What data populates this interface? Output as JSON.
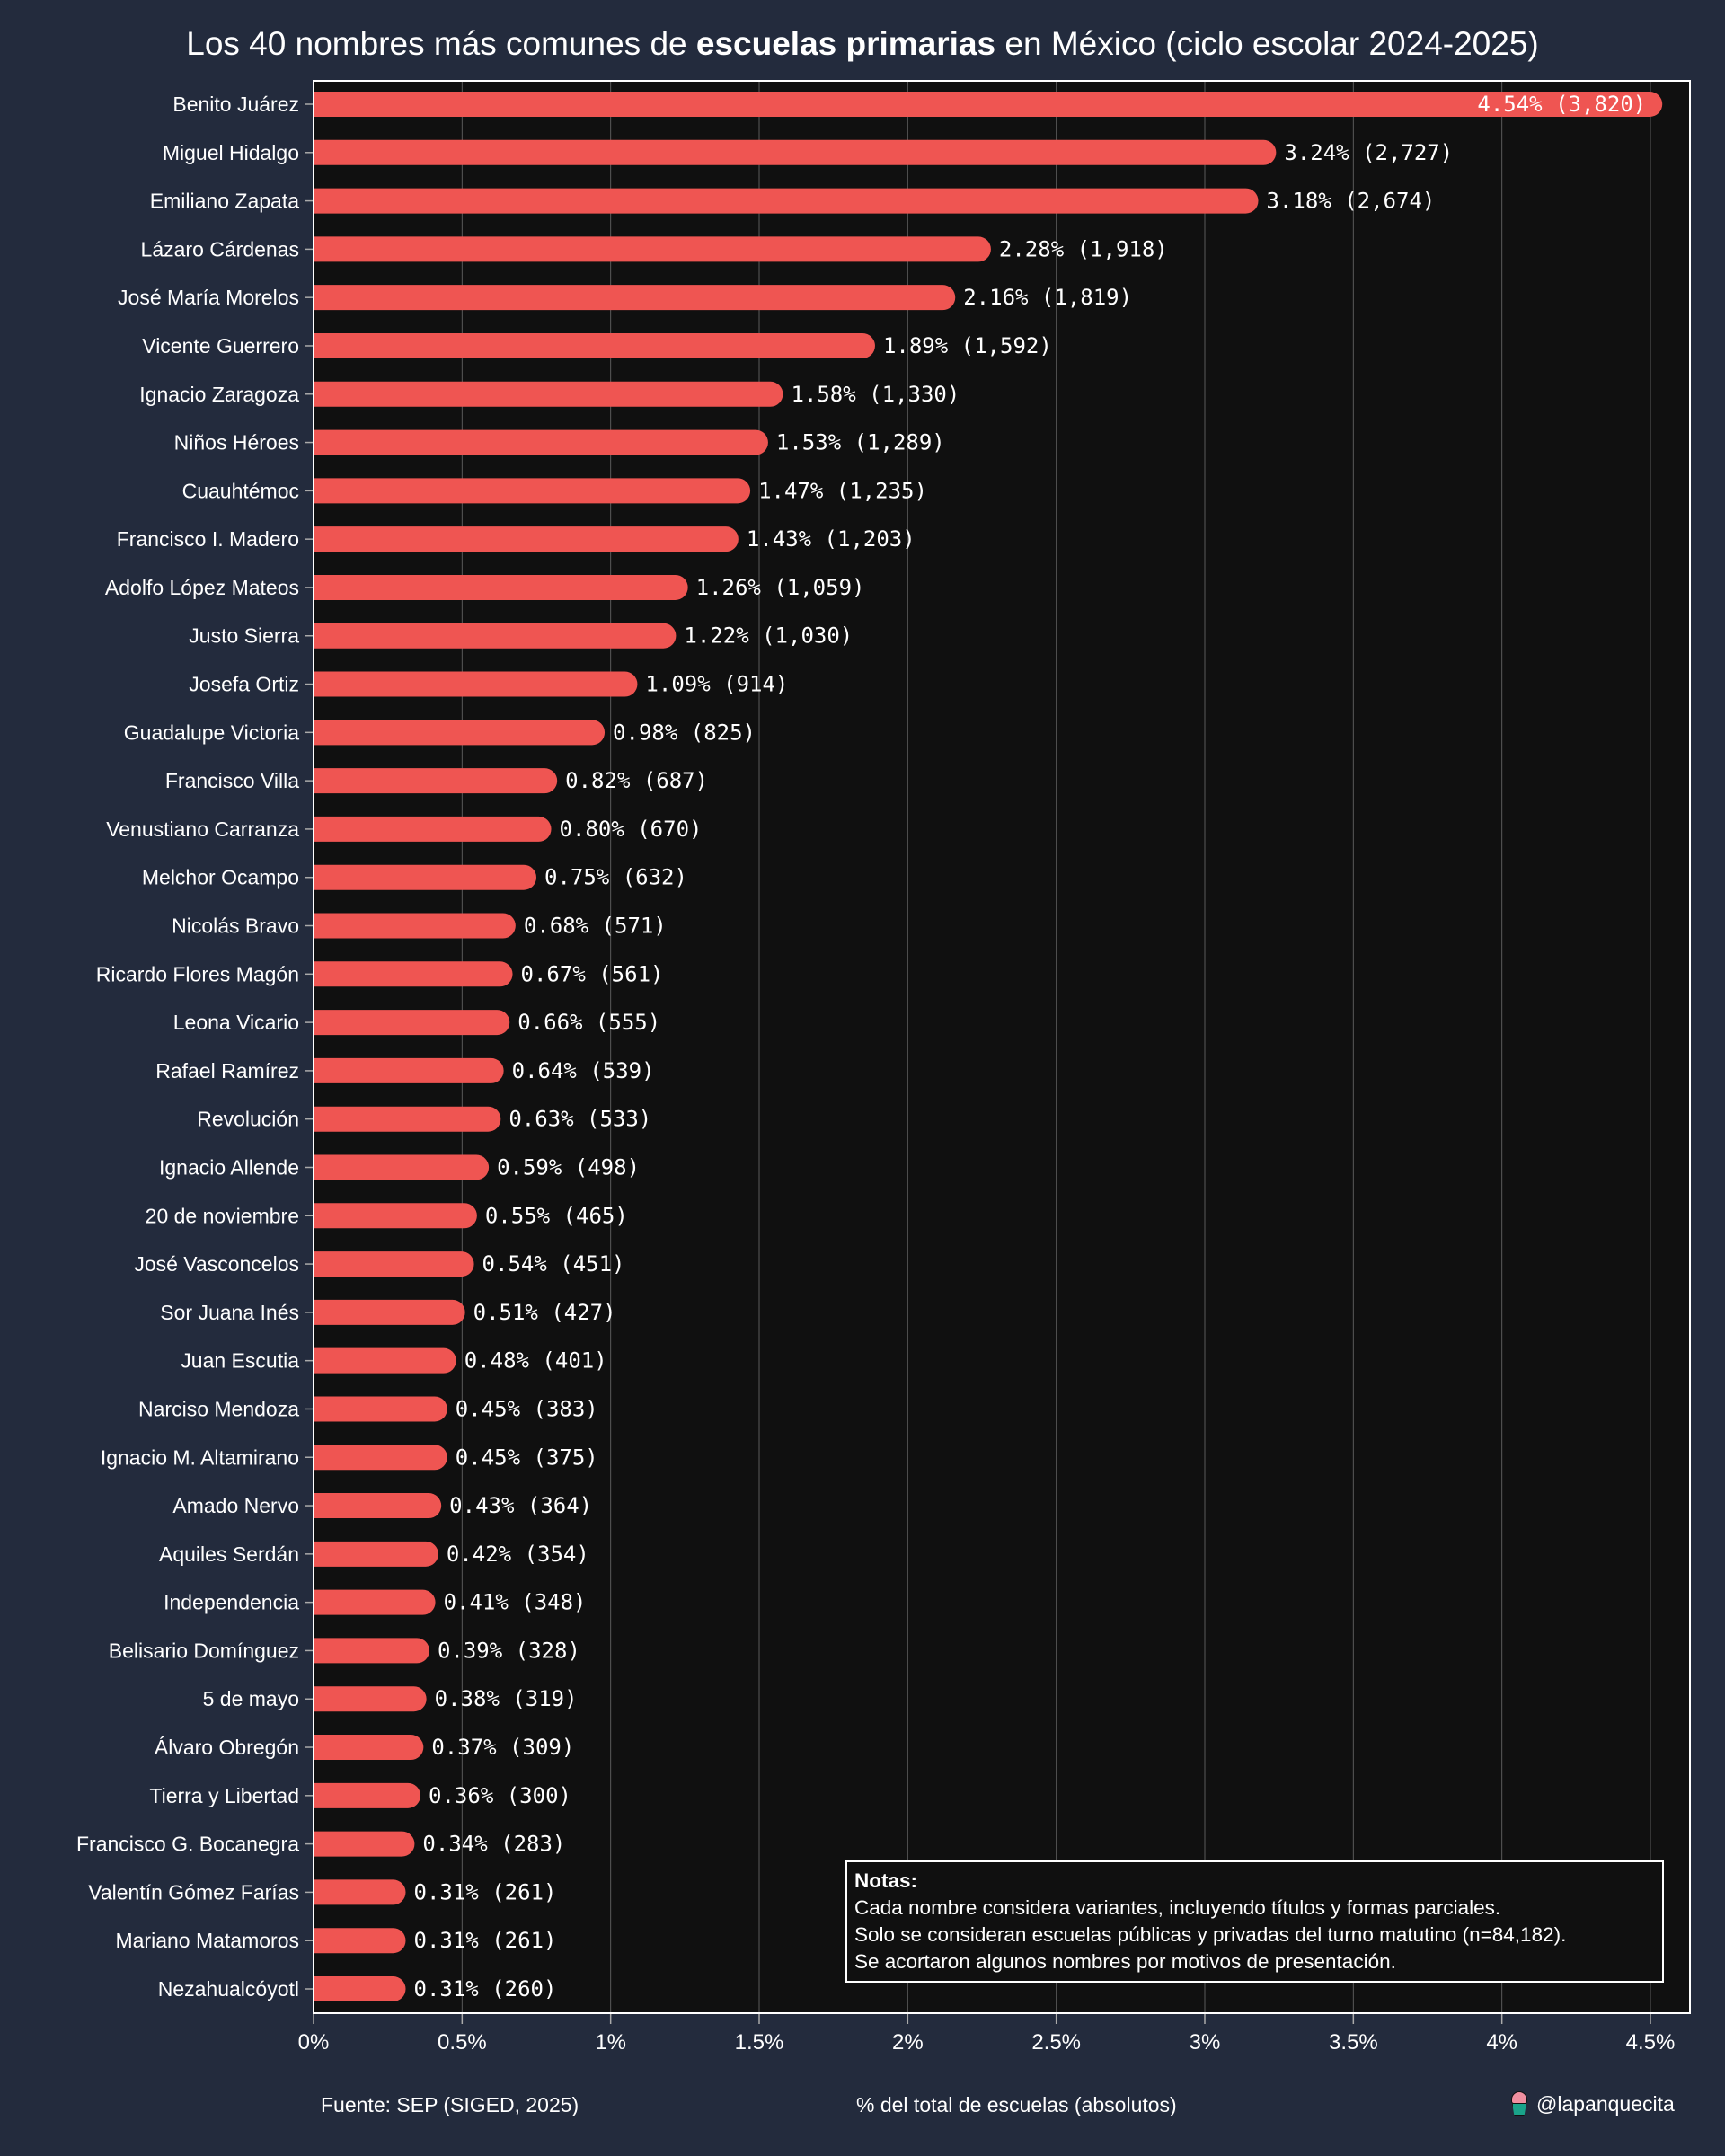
{
  "title": {
    "prefix": "Los 40 nombres más comunes de ",
    "bold": "escuelas primarias",
    "suffix": " en México (ciclo escolar 2024-2025)"
  },
  "colors": {
    "background": "#232b3d",
    "plot_background": "#101010",
    "bar": "#ef5552",
    "grid": "#5a5a5a",
    "text": "#ffffff"
  },
  "notes": {
    "title": "Notas:",
    "lines": [
      "Cada nombre considera variantes, incluyendo títulos y formas parciales.",
      "Solo se consideran escuelas públicas y privadas del turno matutino (n=84,182).",
      "Se acortaron algunos nombres por motivos de presentación."
    ]
  },
  "footer": {
    "source": "Fuente: SEP (SIGED, 2025)",
    "xlabel": "% del total de escuelas (absolutos)",
    "credit": "@lapanquecita",
    "credit_icon": "cupcake-icon"
  },
  "chart_data": {
    "type": "bar",
    "orientation": "horizontal",
    "title": "Los 40 nombres más comunes de escuelas primarias en México (ciclo escolar 2024-2025)",
    "xlabel": "% del total de escuelas (absolutos)",
    "ylabel": "",
    "xlim": [
      0,
      4.6
    ],
    "xticks": [
      0,
      0.5,
      1,
      1.5,
      2,
      2.5,
      3,
      3.5,
      4,
      4.5
    ],
    "xtick_labels": [
      "0%",
      "0.5%",
      "1%",
      "1.5%",
      "2%",
      "2.5%",
      "3%",
      "3.5%",
      "4%",
      "4.5%"
    ],
    "grid": "vertical",
    "categories": [
      "Benito Juárez",
      "Miguel Hidalgo",
      "Emiliano Zapata",
      "Lázaro Cárdenas",
      "José María Morelos",
      "Vicente Guerrero",
      "Ignacio Zaragoza",
      "Niños Héroes",
      "Cuauhtémoc",
      "Francisco I. Madero",
      "Adolfo López Mateos",
      "Justo Sierra",
      "Josefa Ortiz",
      "Guadalupe Victoria",
      "Francisco Villa",
      "Venustiano Carranza",
      "Melchor Ocampo",
      "Nicolás Bravo",
      "Ricardo Flores Magón",
      "Leona Vicario",
      "Rafael Ramírez",
      "Revolución",
      "Ignacio Allende",
      "20 de noviembre",
      "José Vasconcelos",
      "Sor Juana Inés",
      "Juan Escutia",
      "Narciso Mendoza",
      "Ignacio M. Altamirano",
      "Amado Nervo",
      "Aquiles Serdán",
      "Independencia",
      "Belisario Domínguez",
      "5 de mayo",
      "Álvaro Obregón",
      "Tierra y Libertad",
      "Francisco G. Bocanegra",
      "Valentín Gómez Farías",
      "Mariano Matamoros",
      "Nezahualcóyotl"
    ],
    "values": [
      4.54,
      3.24,
      3.18,
      2.28,
      2.16,
      1.89,
      1.58,
      1.53,
      1.47,
      1.43,
      1.26,
      1.22,
      1.09,
      0.98,
      0.82,
      0.8,
      0.75,
      0.68,
      0.67,
      0.66,
      0.64,
      0.63,
      0.59,
      0.55,
      0.54,
      0.51,
      0.48,
      0.45,
      0.45,
      0.43,
      0.42,
      0.41,
      0.39,
      0.38,
      0.37,
      0.36,
      0.34,
      0.31,
      0.31,
      0.31
    ],
    "counts": [
      3820,
      2727,
      2674,
      1918,
      1819,
      1592,
      1330,
      1289,
      1235,
      1203,
      1059,
      1030,
      914,
      825,
      687,
      670,
      632,
      571,
      561,
      555,
      539,
      533,
      498,
      465,
      451,
      427,
      401,
      383,
      375,
      364,
      354,
      348,
      328,
      319,
      309,
      300,
      283,
      261,
      261,
      260
    ],
    "data_labels": [
      "4.54% (3,820)",
      "3.24% (2,727)",
      "3.18% (2,674)",
      "2.28% (1,918)",
      "2.16% (1,819)",
      "1.89% (1,592)",
      "1.58% (1,330)",
      "1.53% (1,289)",
      "1.47% (1,235)",
      "1.43% (1,203)",
      "1.26% (1,059)",
      "1.22% (1,030)",
      "1.09% (914)",
      "0.98% (825)",
      "0.82% (687)",
      "0.80% (670)",
      "0.75% (632)",
      "0.68% (571)",
      "0.67% (561)",
      "0.66% (555)",
      "0.64% (539)",
      "0.63% (533)",
      "0.59% (498)",
      "0.55% (465)",
      "0.54% (451)",
      "0.51% (427)",
      "0.48% (401)",
      "0.45% (383)",
      "0.45% (375)",
      "0.43% (364)",
      "0.42% (354)",
      "0.41% (348)",
      "0.39% (328)",
      "0.38% (319)",
      "0.37% (309)",
      "0.36% (300)",
      "0.34% (283)",
      "0.31% (261)",
      "0.31% (261)",
      "0.31% (260)"
    ]
  }
}
